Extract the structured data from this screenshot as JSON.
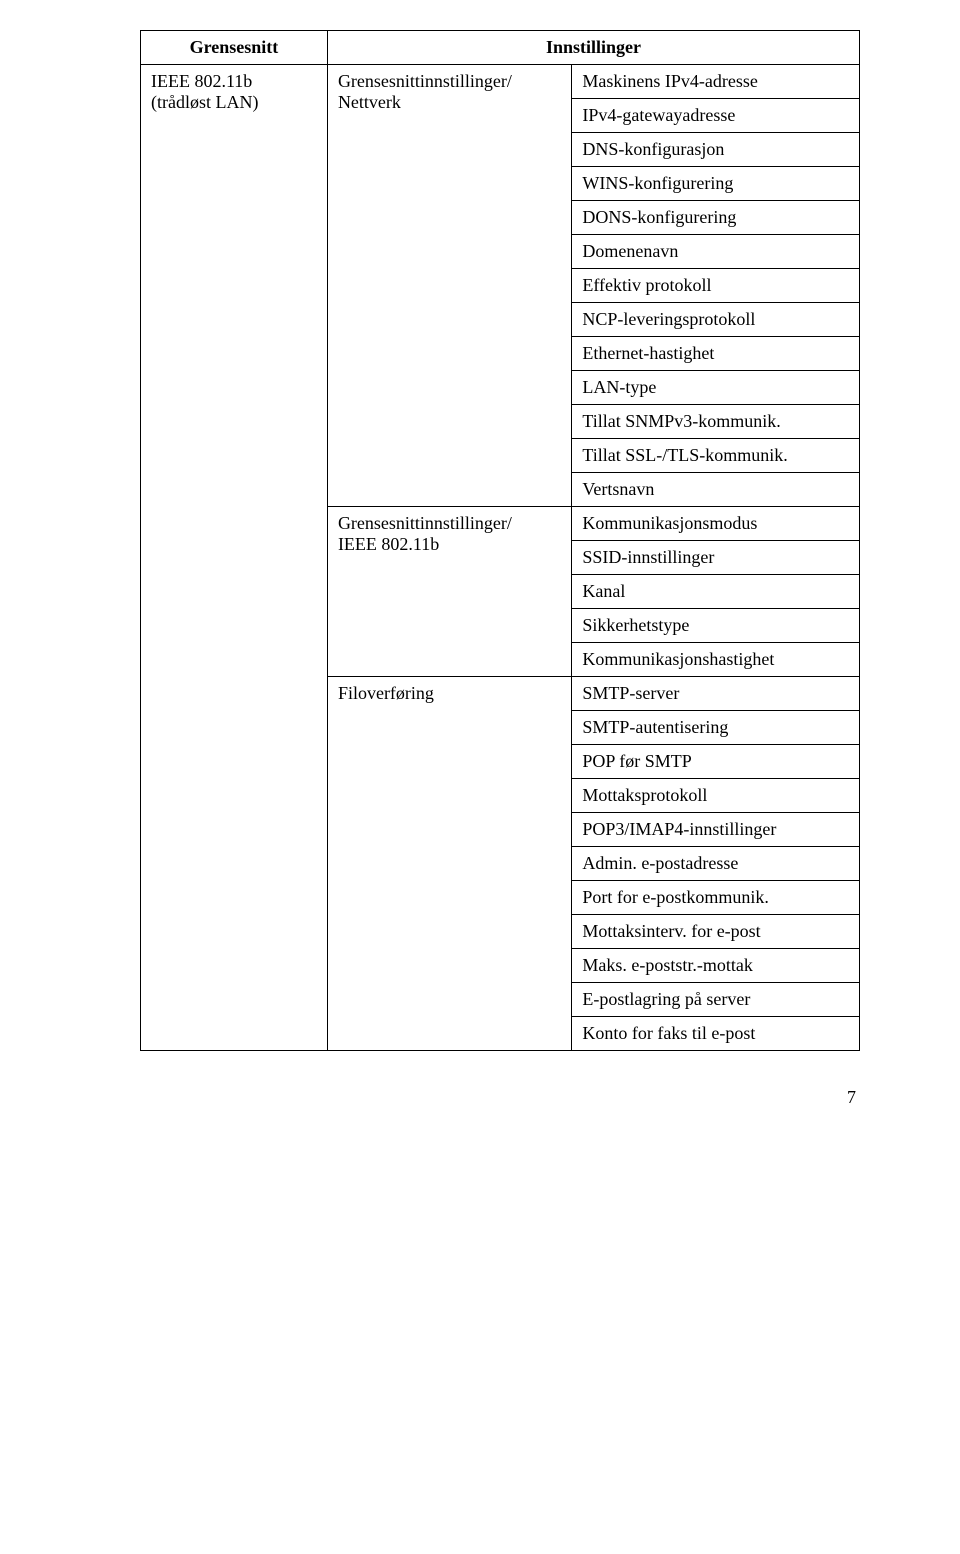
{
  "headers": {
    "col1": "Grensesnitt",
    "col3": "Innstillinger"
  },
  "iface": {
    "line1": "IEEE 802.11b",
    "line2": "(trådløst LAN)"
  },
  "group1": {
    "label_l1": "Grensesnittinnstillinger/",
    "label_l2": "Nettverk",
    "items": [
      "Maskinens IPv4-adresse",
      "IPv4-gatewayadresse",
      "DNS-konfigurasjon",
      "WINS-konfigurering",
      "DONS-konfigurering",
      "Domenenavn",
      "Effektiv protokoll",
      "NCP-leveringsprotokoll",
      "Ethernet-hastighet",
      "LAN-type",
      "Tillat SNMPv3-kommunik.",
      "Tillat SSL-/TLS-kommunik.",
      "Vertsnavn"
    ]
  },
  "group2": {
    "label_l1": "Grensesnittinnstillinger/",
    "label_l2": "IEEE 802.11b",
    "items": [
      "Kommunikasjonsmodus",
      "SSID-innstillinger",
      "Kanal",
      "Sikkerhetstype",
      "Kommunikasjonshastighet"
    ]
  },
  "group3": {
    "label": "Filoverføring",
    "items": [
      "SMTP-server",
      "SMTP-autentisering",
      "POP før SMTP",
      "Mottaksprotokoll",
      "POP3/IMAP4-innstillinger",
      "Admin. e-postadresse",
      "Port for e-postkommunik.",
      "Mottaksinterv. for e-post",
      "Maks. e-poststr.-mottak",
      "E-postlagring på server",
      "Konto for faks til e-post"
    ]
  },
  "pagenum": "7"
}
